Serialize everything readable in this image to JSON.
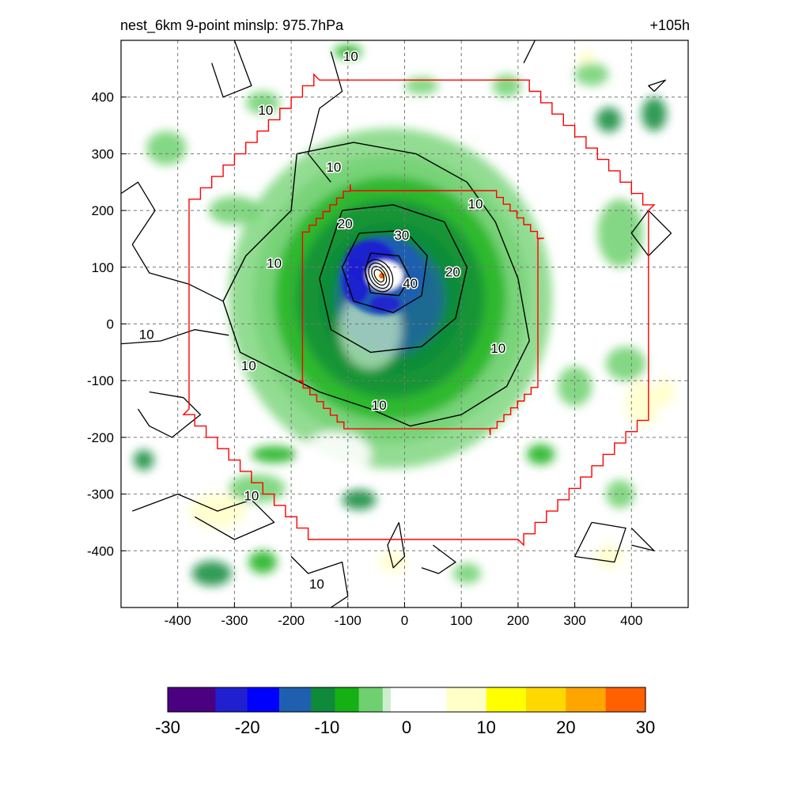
{
  "chart_data": {
    "type": "heatmap",
    "title": "nest_6km  9-point minslp: 975.7hPa",
    "forecast_hour_label": "+105h",
    "x_range": [
      -500,
      500
    ],
    "y_range": [
      -500,
      500
    ],
    "x_ticks": [
      -400,
      -300,
      -200,
      -100,
      0,
      100,
      200,
      300,
      400
    ],
    "y_ticks": [
      -400,
      -300,
      -200,
      -100,
      0,
      100,
      200,
      300,
      400
    ],
    "grid": true,
    "storm_center": [
      -40,
      85
    ],
    "colorbar": {
      "min": -30,
      "max": 30,
      "ticks": [
        -30,
        -20,
        -10,
        0,
        10,
        20,
        30
      ],
      "stops": [
        {
          "value": -30,
          "color": "#4b0082"
        },
        {
          "value": -24,
          "color": "#2020d0"
        },
        {
          "value": -20,
          "color": "#0000ff"
        },
        {
          "value": -16,
          "color": "#1f5fb0"
        },
        {
          "value": -12,
          "color": "#0f8a3a"
        },
        {
          "value": -9,
          "color": "#14b014"
        },
        {
          "value": -6,
          "color": "#6fd06f"
        },
        {
          "value": -3,
          "color": "#cdeecd"
        },
        {
          "value": -2,
          "color": "#ffffff"
        },
        {
          "value": 3,
          "color": "#ffffff"
        },
        {
          "value": 5,
          "color": "#ffffc8"
        },
        {
          "value": 10,
          "color": "#ffff00"
        },
        {
          "value": 15,
          "color": "#ffd800"
        },
        {
          "value": 20,
          "color": "#ffa500"
        },
        {
          "value": 25,
          "color": "#ff6000"
        },
        {
          "value": 30,
          "color": "#ff0000"
        }
      ]
    },
    "contour_labels": [
      {
        "text": "10",
        "x": -95,
        "y": 470
      },
      {
        "text": "10",
        "x": -245,
        "y": 375
      },
      {
        "text": "10",
        "x": -125,
        "y": 275
      },
      {
        "text": "10",
        "x": 125,
        "y": 210
      },
      {
        "text": "10",
        "x": -230,
        "y": 105
      },
      {
        "text": "10",
        "x": -455,
        "y": -20
      },
      {
        "text": "10",
        "x": -275,
        "y": -75
      },
      {
        "text": "10",
        "x": -45,
        "y": -145
      },
      {
        "text": "10",
        "x": 165,
        "y": -45
      },
      {
        "text": "10",
        "x": -270,
        "y": -305
      },
      {
        "text": "10",
        "x": -155,
        "y": -460
      },
      {
        "text": "20",
        "x": -105,
        "y": 175
      },
      {
        "text": "20",
        "x": 85,
        "y": 90
      },
      {
        "text": "30",
        "x": -5,
        "y": 155
      },
      {
        "text": "40",
        "x": 10,
        "y": 70
      }
    ],
    "regions": {
      "outer_nest_boundary": "red staircase octagon, approx x -380..430, y -380..430",
      "inner_nest_boundary": "red staircase polygon, approx x -180..235, y -185..235"
    }
  }
}
